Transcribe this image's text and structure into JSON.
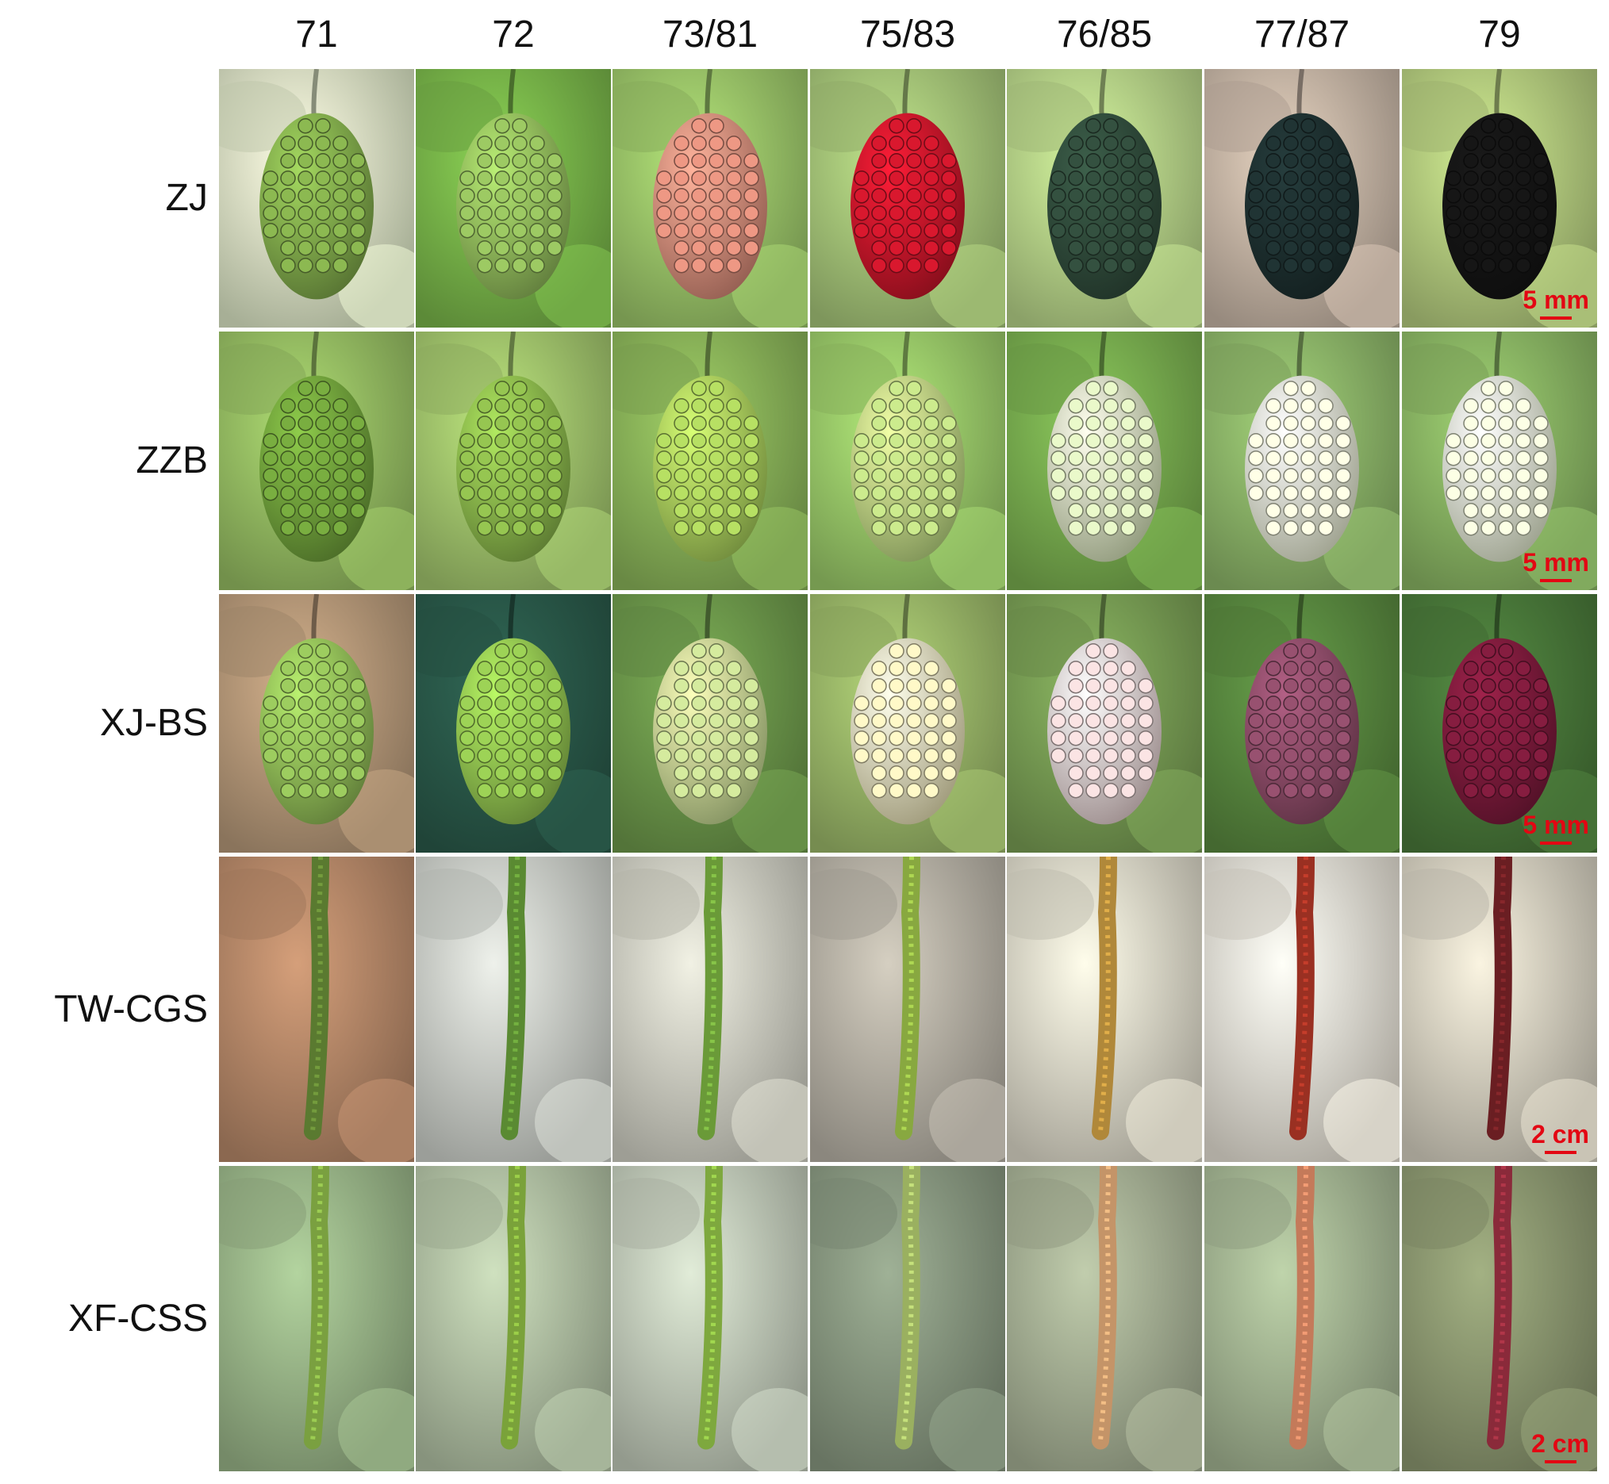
{
  "columns": [
    "71",
    "72",
    "73/81",
    "75/83",
    "76/85",
    "77/87",
    "79"
  ],
  "rows": [
    {
      "label": "ZJ",
      "scale": "5 mm",
      "fruit": "round",
      "fruit_colors": [
        "#7fa84a",
        "#8fb85a",
        "#d88a78",
        "#c5162a",
        "#2f4a3a",
        "#1d2f2f",
        "#141414"
      ],
      "bg_colors": [
        "#dfe9c8",
        "#7ab84a",
        "#9dc86a",
        "#a8c87a",
        "#b9d68a",
        "#c9b8a8",
        "#b7cf80"
      ]
    },
    {
      "label": "ZZB",
      "scale": "5 mm",
      "fruit": "round",
      "fruit_colors": [
        "#6e9e3a",
        "#88b44a",
        "#a6cc5a",
        "#b9d680",
        "#d5e2b8",
        "#e8ecd2",
        "#e5ecd0"
      ],
      "bg_colors": [
        "#98c064",
        "#a4c86e",
        "#8cb65a",
        "#9ccc6a",
        "#7ab050",
        "#8fb86a",
        "#8cb865"
      ]
    },
    {
      "label": "XJ-BS",
      "scale": "5 mm",
      "fruit": "round",
      "fruit_colors": [
        "#8fba56",
        "#8fc04e",
        "#c2d690",
        "#e9e2b6",
        "#e4cfcf",
        "#8a4a66",
        "#7a1a3a"
      ],
      "bg_colors": [
        "#b89a7a",
        "#2a5a4a",
        "#6e9a4c",
        "#9dbb6a",
        "#7aa055",
        "#5a8a40",
        "#4a7a3a"
      ]
    },
    {
      "label": "TW-CGS",
      "scale": "2 cm",
      "fruit": "long",
      "fruit_colors": [
        "#5a7a30",
        "#5a8a32",
        "#6a9a38",
        "#88a840",
        "#b0883a",
        "#9a3022",
        "#6a1e22"
      ],
      "bg_colors": [
        "#b98a6a",
        "#cfd2cc",
        "#d2d2c6",
        "#b9b4a8",
        "#e0dccc",
        "#e9e4d8",
        "#d9d4c4"
      ]
    },
    {
      "label": "XF-CSS",
      "scale": "2 cm",
      "fruit": "long",
      "fruit_colors": [
        "#7aa040",
        "#7aa23a",
        "#7ea83e",
        "#9ab060",
        "#c49468",
        "#c47a5a",
        "#8a2a3a"
      ],
      "bg_colors": [
        "#9cb88a",
        "#b4c4a6",
        "#c4cdbc",
        "#8a9a82",
        "#a8b296",
        "#a6b895",
        "#8e9a72"
      ]
    }
  ]
}
